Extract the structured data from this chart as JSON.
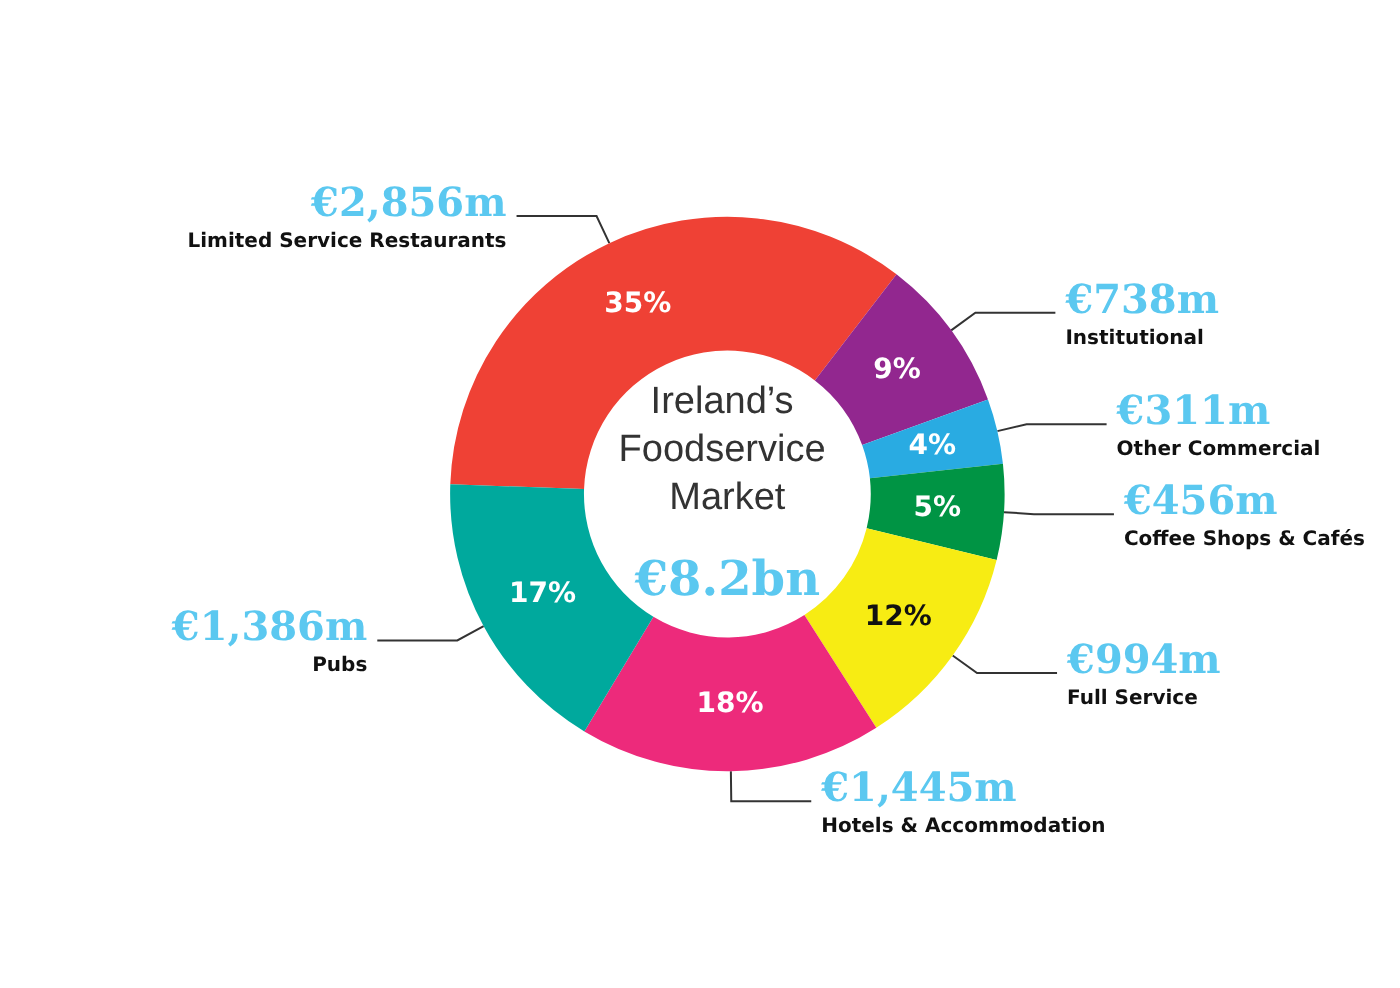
{
  "chart_data": {
    "type": "donut",
    "title": "Ireland’s Foodservice Market",
    "subtitle": "€8.2bn",
    "categories": [
      "Limited Service Restaurants",
      "Institutional",
      "Other Commercial",
      "Coffee Shops & Cafés",
      "Full Service",
      "Hotels & Accommodation",
      "Pubs"
    ],
    "values": [
      2856,
      738,
      311,
      456,
      994,
      1445,
      1386
    ],
    "colors": [
      "#ef4135",
      "#92278f",
      "#29abe2",
      "#009444",
      "#f7ec13",
      "#ed2a7b",
      "#00a99d"
    ],
    "value_labels": [
      "€2,856m",
      "€738m",
      "€311m",
      "€456m",
      "€994m",
      "€1,445m",
      "€1,386m"
    ],
    "annotations": [
      {
        "text": "35%",
        "x": "Limited Service Restaurants"
      },
      {
        "text": "9%",
        "x": "Institutional"
      },
      {
        "text": "4%",
        "x": "Other Commercial"
      },
      {
        "text": "5%",
        "x": "Coffee Shops & Cafés"
      },
      {
        "text": "12%",
        "x": "Full Service"
      },
      {
        "text": "18%",
        "x": "Hotels & Accommodation"
      },
      {
        "text": "17%",
        "x": "Pubs"
      }
    ],
    "legend": false
  }
}
